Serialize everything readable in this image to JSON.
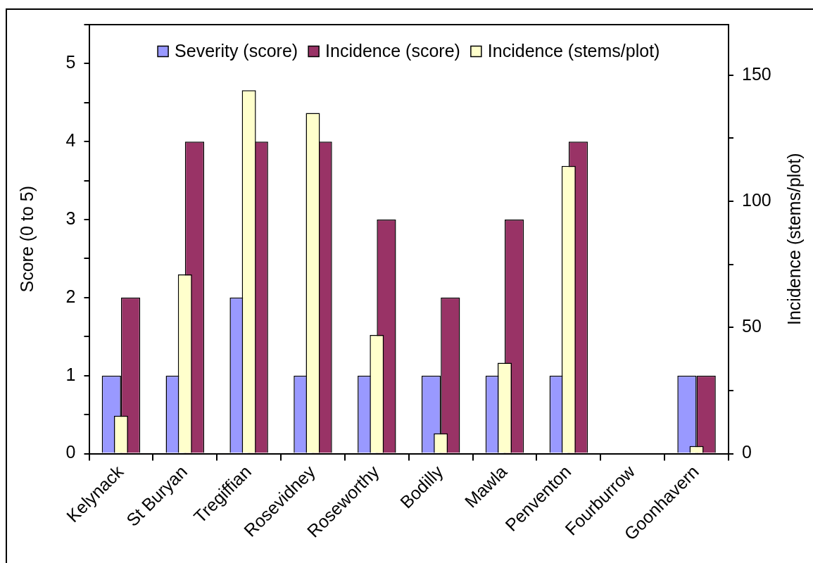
{
  "chart_data": {
    "type": "bar",
    "categories": [
      "Kelynack",
      "St Buryan",
      "Tregiffian",
      "Rosevidney",
      "Roseworthy",
      "Bodilly",
      "Mawla",
      "Penventon",
      "Fourburrow",
      "Goonhavern"
    ],
    "series": [
      {
        "name": "Severity (score)",
        "color": "#9999ff",
        "values": [
          1,
          1,
          2,
          1,
          1,
          1,
          1,
          1,
          null,
          1
        ]
      },
      {
        "name": "Incidence (score)",
        "color": "#993366",
        "values": [
          2,
          4,
          4,
          4,
          3,
          2,
          3,
          4,
          null,
          1
        ]
      },
      {
        "name": "Incidence (stems/plot)",
        "color": "#ffffcc",
        "axis": "y2",
        "values": [
          15,
          71,
          144,
          135,
          47,
          8,
          36,
          114,
          null,
          3
        ]
      }
    ],
    "ylabel": "Score (0 to 5)",
    "y2label": "Incidence (stems/plot)",
    "ylim": [
      0,
      5.5
    ],
    "yticks": [
      0,
      {
        "value": 0.5,
        "label": null
      },
      1,
      {
        "value": 1.5,
        "label": null
      },
      2,
      {
        "value": 2.5,
        "label": null
      },
      3,
      {
        "value": 3.5,
        "label": null
      },
      4,
      {
        "value": 4.5,
        "label": null
      },
      5,
      {
        "value": 5.5,
        "label": null
      }
    ],
    "y2lim": [
      0,
      170
    ],
    "y2ticks": [
      0,
      {
        "value": 25,
        "label": null
      },
      50,
      {
        "value": 75,
        "label": null
      },
      100,
      {
        "value": 125,
        "label": null
      },
      150
    ],
    "legend": "top",
    "grid": false
  }
}
